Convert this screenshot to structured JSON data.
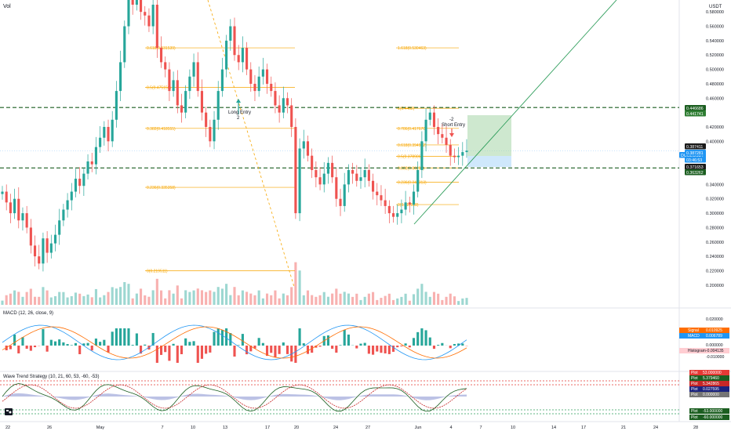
{
  "header": {
    "vol_label": "Vol",
    "currency": "USDT"
  },
  "price_axis": {
    "ticks": [
      "0.580000",
      "0.560000",
      "0.540000",
      "0.520000",
      "0.500000",
      "0.480000",
      "0.460000",
      "0.420000",
      "0.400000",
      "0.340000",
      "0.320000",
      "0.300000",
      "0.280000",
      "0.260000",
      "0.240000",
      "0.220000",
      "0.200000"
    ],
    "tags": [
      {
        "text": "0.446686",
        "bg": "#1b5e20",
        "fg": "#ffffff"
      },
      {
        "text": "0.441741",
        "bg": "#2e7d32",
        "fg": "#ffffff"
      },
      {
        "text": "DOGEUSDT",
        "bg": "#2196f3",
        "fg": "#ffffff"
      },
      {
        "text": "0.387411",
        "bg": "#1a1a1a",
        "fg": "#ffffff"
      },
      {
        "text": "0.387281",
        "bg": "#2196f3",
        "fg": "#ffffff"
      },
      {
        "text": "03:46:53",
        "bg": "#2196f3",
        "fg": "#ffffff"
      },
      {
        "text": "0.371653",
        "bg": "#1a1a1a",
        "fg": "#ffffff"
      },
      {
        "text": "0.363262",
        "bg": "#1b5e20",
        "fg": "#ffffff"
      }
    ]
  },
  "x_axis": {
    "labels": [
      "22",
      "26",
      "May",
      "7",
      "10",
      "13",
      "17",
      "20",
      "24",
      "27",
      "Jun",
      "4",
      "7",
      "10",
      "14",
      "17",
      "21",
      "24",
      "28"
    ]
  },
  "fib_levels": [
    {
      "label": "0.618(0.531539)"
    },
    {
      "label": "0.5(0.475156)"
    },
    {
      "label": "0.382(0.418555)"
    },
    {
      "label": "0.236(0.335358)"
    },
    {
      "label": "0(0.219511)"
    },
    {
      "label": "1.618(0.530463)"
    },
    {
      "label": "1(0.4462)"
    },
    {
      "label": "0.786(0.417676)"
    },
    {
      "label": "0.618(0.394902)"
    },
    {
      "label": "0.5(0.378906)"
    },
    {
      "label": "0.382(0.36296)"
    },
    {
      "label": "0.236(0.343313)"
    },
    {
      "label": "0(0.311598)"
    }
  ],
  "annotations": {
    "long_entry": "Long Entry",
    "long_entry_sub": "2",
    "short_entry_top": "-2",
    "short_entry": "Short Entry"
  },
  "chart_data": [
    {
      "type": "candlestick",
      "title": "DOGEUSDT",
      "xlabel": "",
      "ylabel": "USDT",
      "ylim": [
        0.19,
        0.6
      ],
      "close_series": [
        0.33,
        0.315,
        0.3,
        0.32,
        0.29,
        0.3,
        0.28,
        0.255,
        0.24,
        0.23,
        0.265,
        0.245,
        0.258,
        0.27,
        0.29,
        0.305,
        0.318,
        0.33,
        0.348,
        0.338,
        0.355,
        0.372,
        0.368,
        0.392,
        0.405,
        0.42,
        0.4,
        0.43,
        0.47,
        0.51,
        0.56,
        0.6,
        0.59,
        0.61,
        0.58,
        0.575,
        0.56,
        0.59,
        0.53,
        0.51,
        0.5,
        0.47,
        0.485,
        0.45,
        0.44,
        0.47,
        0.49,
        0.51,
        0.47,
        0.44,
        0.42,
        0.4,
        0.43,
        0.47,
        0.5,
        0.54,
        0.56,
        0.52,
        0.51,
        0.53,
        0.5,
        0.48,
        0.47,
        0.49,
        0.5,
        0.48,
        0.47,
        0.45,
        0.44,
        0.46,
        0.45,
        0.42,
        0.3,
        0.39,
        0.4,
        0.38,
        0.36,
        0.35,
        0.34,
        0.355,
        0.37,
        0.35,
        0.32,
        0.31,
        0.34,
        0.36,
        0.355,
        0.345,
        0.35,
        0.36,
        0.345,
        0.33,
        0.325,
        0.318,
        0.31,
        0.3,
        0.295,
        0.3,
        0.305,
        0.315,
        0.312,
        0.33,
        0.36,
        0.4,
        0.43,
        0.44,
        0.42,
        0.41,
        0.405,
        0.395,
        0.38,
        0.378,
        0.38,
        0.385,
        0.387
      ],
      "markers": {
        "long_entry_price": 0.455,
        "short_entry_price": 0.412,
        "current_price": 0.387281
      }
    },
    {
      "type": "bar",
      "title": "MACD (12, 26, close, 9)",
      "series": [
        {
          "name": "Histogram",
          "value": -0.004135
        },
        {
          "name": "MACD",
          "value": 0.006789
        },
        {
          "name": "Signal",
          "value": 0.010925
        }
      ],
      "axis_ticks": [
        "0.020000",
        "0.000000",
        "-0.010000"
      ]
    },
    {
      "type": "line",
      "title": "Wave Trend Strategy (10, 21, 60, 53, -60, -53)",
      "series": [
        {
          "name": "Plot",
          "value": 53.0
        },
        {
          "name": "Plot",
          "value": 5.37946
        },
        {
          "name": "Plot",
          "value": 5.342865
        },
        {
          "name": "Plot",
          "value": 0.027595
        },
        {
          "name": "Plot",
          "value": 0.0
        },
        {
          "name": "Plot",
          "value": -53.0
        },
        {
          "name": "Plot",
          "value": -60.0
        }
      ],
      "tags": [
        "53.000000",
        "5.379460",
        "5.342865",
        "0.027595",
        "0.000000",
        "-53.000000",
        "-60.000000"
      ]
    }
  ],
  "panels": {
    "macd_title": "MACD (12, 26, close, 9)",
    "macd_legend": [
      {
        "name": "Signal",
        "value": "0.010925",
        "bg": "#ff6d00"
      },
      {
        "name": "MACD",
        "value": "0.006789",
        "bg": "#2196f3"
      },
      {
        "name": "Histogram",
        "value": "-0.004135",
        "bg": "#ffcdd2"
      }
    ],
    "wt_title": "Wave Trend Strategy (10, 21, 60, 53, -60, -53)",
    "wt_legend": [
      {
        "name": "Plot",
        "value": "53.000000",
        "bg": "#e53935"
      },
      {
        "name": "Plot",
        "value": "5.379460",
        "bg": "#1b5e20"
      },
      {
        "name": "Plot",
        "value": "5.342865",
        "bg": "#c62828"
      },
      {
        "name": "Plot",
        "value": "0.027595",
        "bg": "#1a237e"
      },
      {
        "name": "Plot",
        "value": "0.000000",
        "bg": "#757575"
      },
      {
        "name": "Plot",
        "value": "-53.000000",
        "bg": "#1b5e20"
      },
      {
        "name": "Plot",
        "value": "-60.000000",
        "bg": "#1b5e20"
      }
    ]
  },
  "colors": {
    "up": "#26a69a",
    "down": "#ef5350",
    "fib": "#f7a600",
    "trend": "#2e9d5b",
    "dash": "#1b5e20"
  }
}
